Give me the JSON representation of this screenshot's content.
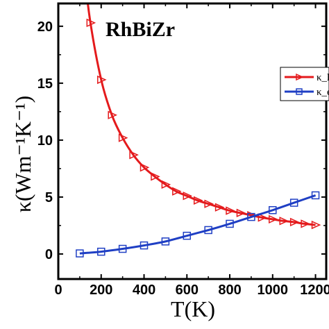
{
  "chart_data": {
    "type": "line",
    "title": "RhBiZr",
    "xlabel": "T(K)",
    "ylabel": "κ(Wm⁻¹K⁻¹)",
    "xlim": [
      0,
      1250
    ],
    "ylim": [
      -2.2,
      22
    ],
    "x_ticks": [
      0,
      200,
      400,
      600,
      800,
      1000,
      1200
    ],
    "x_tick_labels": [
      "0",
      "200",
      "400",
      "600",
      "800",
      "1000",
      "1200"
    ],
    "y_ticks": [
      0,
      5,
      10,
      15,
      20
    ],
    "y_tick_labels": [
      "0",
      "5",
      "10",
      "15",
      "20"
    ],
    "grid": false,
    "legend_position": "top-right",
    "series": [
      {
        "name": "κ_l",
        "color": "#e41a1c",
        "marker": "triangle-right",
        "x": [
          150,
          200,
          250,
          300,
          350,
          400,
          450,
          500,
          550,
          600,
          650,
          700,
          750,
          800,
          850,
          900,
          950,
          1000,
          1050,
          1100,
          1150,
          1200
        ],
        "y": [
          20.3,
          15.3,
          12.2,
          10.2,
          8.7,
          7.6,
          6.8,
          6.1,
          5.5,
          5.1,
          4.7,
          4.4,
          4.1,
          3.8,
          3.6,
          3.4,
          3.2,
          3.05,
          2.9,
          2.8,
          2.65,
          2.55
        ]
      },
      {
        "name": "κ_e",
        "color": "#1f3fc4",
        "marker": "square",
        "x": [
          100,
          200,
          300,
          400,
          500,
          600,
          700,
          800,
          900,
          1000,
          1100,
          1200
        ],
        "y": [
          0.05,
          0.2,
          0.45,
          0.75,
          1.1,
          1.6,
          2.1,
          2.65,
          3.25,
          3.85,
          4.5,
          5.15
        ]
      }
    ]
  }
}
